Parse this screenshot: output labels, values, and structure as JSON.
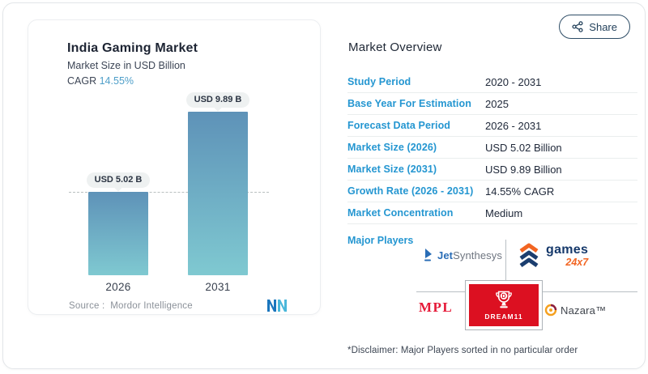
{
  "share": {
    "label": "Share"
  },
  "chart_data": {
    "type": "bar",
    "title": "India Gaming Market",
    "subtitle": "Market Size in USD Billion",
    "cagr_label": "CAGR",
    "cagr_value": "14.55%",
    "categories": [
      "2026",
      "2031"
    ],
    "values": [
      5.02,
      9.89
    ],
    "ymax": 9.89,
    "bar_labels": [
      "USD 5.02 B",
      "USD 9.89 B"
    ],
    "bar_gradient_top": "#5E92B8",
    "bar_gradient_bottom": "#7FC9D1",
    "reference_line_at": 5.02,
    "legend": "none",
    "grid": "off",
    "source_label": "Source :",
    "source_value": "Mordor Intelligence"
  },
  "overview": {
    "heading": "Market Overview",
    "rows": [
      {
        "label": "Study Period",
        "value": "2020 - 2031"
      },
      {
        "label": "Base Year For Estimation",
        "value": "2025"
      },
      {
        "label": "Forecast Data Period",
        "value": "2026 - 2031"
      },
      {
        "label": "Market Size (2026)",
        "value": "USD 5.02 Billion"
      },
      {
        "label": "Market Size (2031)",
        "value": "USD 9.89 Billion"
      },
      {
        "label": "Growth Rate (2026 - 2031)",
        "value": "14.55% CAGR"
      },
      {
        "label": "Market Concentration",
        "value": "Medium"
      }
    ],
    "major_players_label": "Major Players",
    "major_players": [
      "JetSynthesys",
      "games 24x7",
      "MPL",
      "DREAM11",
      "Nazara"
    ],
    "disclaimer": "*Disclaimer: Major Players sorted in no particular order"
  },
  "logos": {
    "jetsynthesys_bold": "Jet",
    "jetsynthesys_light": "Synthesys",
    "games_word": "games",
    "games_247": "24x7",
    "mpl": "MPL",
    "dream11": "DREAM11",
    "dream11_letter": "D",
    "nazara": "Nazara™"
  },
  "colors": {
    "accent_blue": "#2496d1",
    "cagr_blue": "#4f9fc9",
    "dream11_red": "#dc1021",
    "mpl_red": "#e51937",
    "games_navy": "#16396b",
    "games_orange": "#f26522",
    "dark_text": "#20293a"
  }
}
